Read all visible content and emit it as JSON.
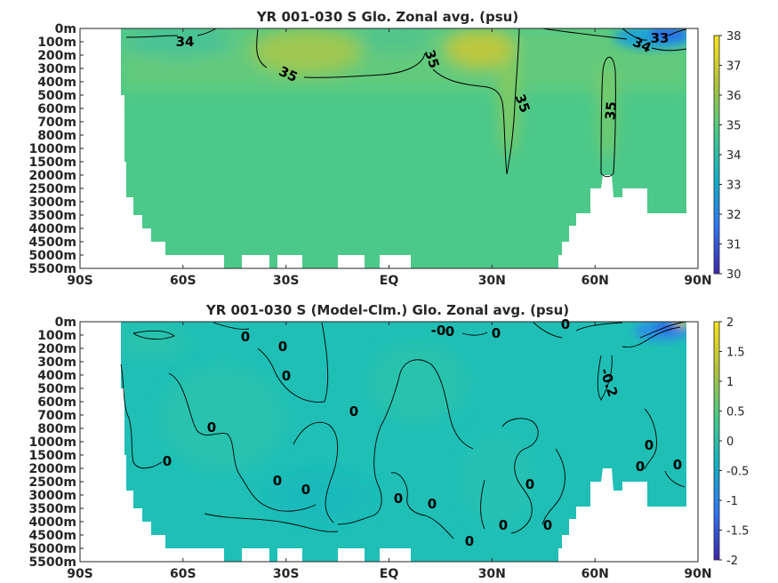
{
  "chart_data": [
    {
      "type": "heatmap",
      "title": "YR 001-030 S Glo. Zonal avg. (psu)",
      "x_ticks": [
        "90S",
        "60S",
        "30S",
        "EQ",
        "30N",
        "60N",
        "90N"
      ],
      "y_ticks": [
        "0m",
        "100m",
        "200m",
        "300m",
        "400m",
        "500m",
        "600m",
        "700m",
        "800m",
        "1000m",
        "1500m",
        "2000m",
        "2500m",
        "3000m",
        "3500m",
        "4000m",
        "4500m",
        "5000m",
        "5500m"
      ],
      "colorbar_ticks": [
        "30",
        "31",
        "32",
        "33",
        "34",
        "35",
        "36",
        "37",
        "38"
      ],
      "colorbar_range": [
        30,
        38
      ],
      "contour_labels": [
        "34",
        "35",
        "35",
        "35",
        "35",
        "34",
        "33"
      ],
      "colormap": [
        "#3d26a8",
        "#2f76f5",
        "#10b1c6",
        "#45cb86",
        "#b2c338",
        "#f9e21c"
      ]
    },
    {
      "type": "heatmap",
      "title": "YR 001-030 S (Model-Clm.) Glo. Zonal avg. (psu)",
      "x_ticks": [
        "90S",
        "60S",
        "30S",
        "EQ",
        "30N",
        "60N",
        "90N"
      ],
      "y_ticks": [
        "0m",
        "100m",
        "200m",
        "300m",
        "400m",
        "500m",
        "600m",
        "700m",
        "800m",
        "1000m",
        "1500m",
        "2000m",
        "2500m",
        "3000m",
        "3500m",
        "4000m",
        "4500m",
        "5000m",
        "5500m"
      ],
      "colorbar_ticks": [
        "2",
        "1.5",
        "1",
        "0.5",
        "0",
        "-0.5",
        "-1",
        "-1.5",
        "-2"
      ],
      "colorbar_range": [
        -2,
        2
      ],
      "contour_labels": [
        "0",
        "0",
        "0",
        "0",
        "-0",
        "0",
        "0",
        "-0.2",
        "0",
        "0",
        "0",
        "0",
        "0",
        "0",
        "0",
        "0",
        "0",
        "0",
        "0",
        "0",
        "0",
        "0"
      ],
      "colormap": [
        "#3d26a8",
        "#2f76f5",
        "#10b1c6",
        "#45cb86",
        "#b2c338",
        "#f9e21c"
      ]
    }
  ]
}
